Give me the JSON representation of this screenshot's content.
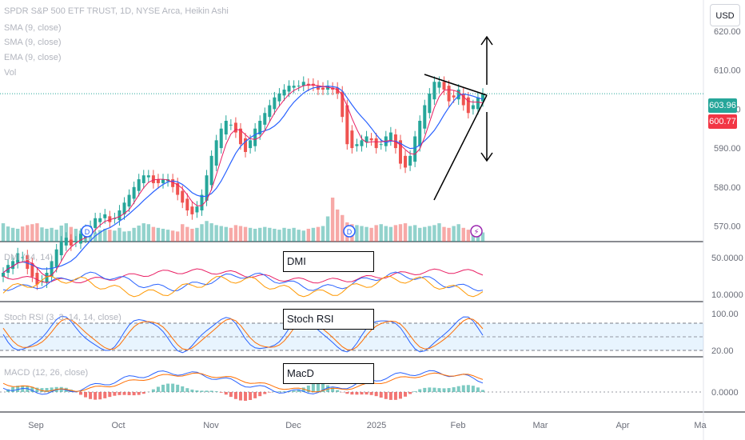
{
  "header": {
    "title": "SPDR S&P 500 ETF TRUST, 1D, NYSE Arca, Heikin Ashi",
    "indicators": [
      "SMA (9, close)",
      "SMA (9, close)",
      "EMA (9, close)",
      "Vol"
    ],
    "currency": "USD"
  },
  "price_tags": {
    "last": "603.96",
    "prev": "600.77"
  },
  "colors": {
    "up": "#26a69a",
    "down": "#ef5350",
    "sma": "#2962ff",
    "ema": "#e91e63",
    "last_tag": "#26a69a",
    "prev_tag": "#f23645"
  },
  "panes": {
    "dmi": {
      "title": "DMI (14, 14)",
      "annotation": "DMI",
      "axis": [
        "50.0000",
        "10.0000"
      ]
    },
    "stoch": {
      "title": "Stoch RSI (3, 3, 14, 14, close)",
      "annotation": "Stoch RSI",
      "axis": [
        "100.00",
        "20.00"
      ]
    },
    "macd": {
      "title": "MACD (12, 26, close)",
      "annotation": "MacD",
      "axis": [
        "0.0000"
      ]
    }
  },
  "badges": [
    "D",
    "D"
  ],
  "chart_data": {
    "type": "candlestick",
    "title": "SPDR S&P 500 ETF TRUST, 1D, NYSE Arca, Heikin Ashi",
    "price_axis": {
      "ticks": [
        570,
        580,
        590,
        600,
        610,
        620
      ],
      "tick_labels": [
        "570.00",
        "580.00",
        "590.00",
        "600.00",
        "610.00",
        "620.00"
      ],
      "range": [
        566,
        628
      ]
    },
    "x_axis": {
      "labels": [
        "Sep",
        "Oct",
        "Nov",
        "Dec",
        "2025",
        "Feb",
        "Mar",
        "Apr",
        "Ma"
      ]
    },
    "closes": [
      558,
      560,
      561,
      563,
      562,
      559,
      557,
      555,
      556,
      558,
      561,
      564,
      566,
      567,
      565,
      566,
      568,
      569,
      570,
      572,
      572,
      573,
      571,
      572,
      574,
      576,
      578,
      580,
      582,
      583,
      583,
      581,
      581,
      582,
      582,
      580,
      578,
      576,
      574,
      573,
      575,
      578,
      583,
      588,
      592,
      595,
      597,
      596,
      594,
      591,
      589,
      592,
      595,
      597,
      599,
      601,
      603,
      604,
      605,
      606,
      606,
      606,
      607,
      606,
      606,
      605,
      605,
      606,
      605,
      604,
      598,
      591,
      590,
      591,
      592,
      593,
      592,
      590,
      591,
      593,
      594,
      590,
      586,
      585,
      588,
      593,
      597,
      601,
      604,
      607,
      607,
      605,
      602,
      603,
      605,
      601,
      599,
      601,
      603,
      603.96
    ],
    "volume": [
      40,
      33,
      30,
      28,
      33,
      36,
      38,
      40,
      31,
      28,
      30,
      26,
      35,
      40,
      32,
      28,
      24,
      26,
      22,
      20,
      25,
      28,
      26,
      24,
      30,
      22,
      23,
      30,
      35,
      40,
      38,
      32,
      30,
      28,
      26,
      24,
      22,
      38,
      32,
      28,
      30,
      38,
      45,
      40,
      36,
      34,
      32,
      30,
      36,
      34,
      32,
      30,
      28,
      30,
      32,
      30,
      28,
      26,
      30,
      28,
      30,
      26,
      24,
      28,
      30,
      32,
      34,
      55,
      96,
      70,
      58,
      42,
      38,
      36,
      34,
      32,
      30,
      36,
      38,
      34,
      32,
      36,
      38,
      40,
      34,
      36,
      30,
      32,
      34,
      36,
      40,
      32,
      30,
      34,
      38,
      30,
      26,
      28,
      24,
      20
    ],
    "annotations": [
      "DMI",
      "Stoch RSI",
      "MacD"
    ]
  }
}
